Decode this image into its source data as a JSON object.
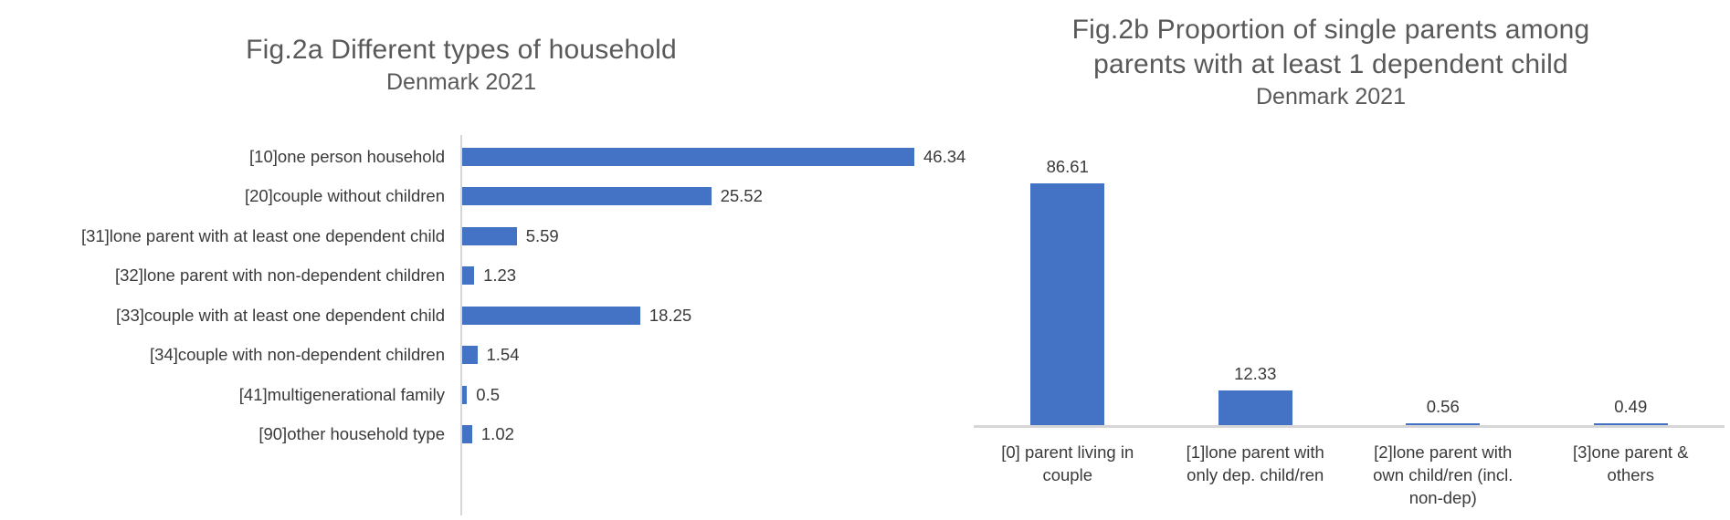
{
  "colors": {
    "bar_fill": "#4472C4",
    "axis_line": "#D6D6D6",
    "title_text": "#595959",
    "label_text": "#3A3A3A"
  },
  "chart_data": [
    {
      "id": "fig2a",
      "type": "bar",
      "orientation": "horizontal",
      "title": "Fig.2a Different types of household",
      "subtitle": "Denmark 2021",
      "categories": [
        "[10]one person household",
        "[20]couple without children",
        "[31]lone parent with at least one dependent child",
        "[32]lone parent with non-dependent children",
        "[33]couple with at least one dependent child",
        "[34]couple with non-dependent children",
        "[41]multigenerational family",
        "[90]other household type"
      ],
      "values": [
        46.34,
        25.52,
        5.59,
        1.23,
        18.25,
        1.54,
        0.5,
        1.02
      ],
      "data_labels": [
        "46.34",
        "25.52",
        "5.59",
        "1.23",
        "18.25",
        "1.54",
        "0.5",
        "1.02"
      ],
      "xlim": [
        0,
        50
      ],
      "gridlines": false,
      "legend": "none",
      "data_labels_position": "outside-end"
    },
    {
      "id": "fig2b",
      "type": "bar",
      "orientation": "vertical",
      "title": "Fig.2b Proportion of single parents among parents with at least 1 dependent child",
      "title_lines": [
        "Fig.2b Proportion of single parents among",
        "parents with at least 1 dependent child"
      ],
      "subtitle": "Denmark 2021",
      "categories": [
        "[0] parent living in couple",
        "[1]lone parent with only dep. child/ren",
        "[2]lone parent with own child/ren (incl. non-dep)",
        "[3]one parent & others"
      ],
      "values": [
        86.61,
        12.33,
        0.56,
        0.49
      ],
      "data_labels": [
        "86.61",
        "12.33",
        "0.56",
        "0.49"
      ],
      "ylim": [
        0,
        90
      ],
      "gridlines": false,
      "legend": "none",
      "data_labels_position": "outside-end"
    }
  ]
}
